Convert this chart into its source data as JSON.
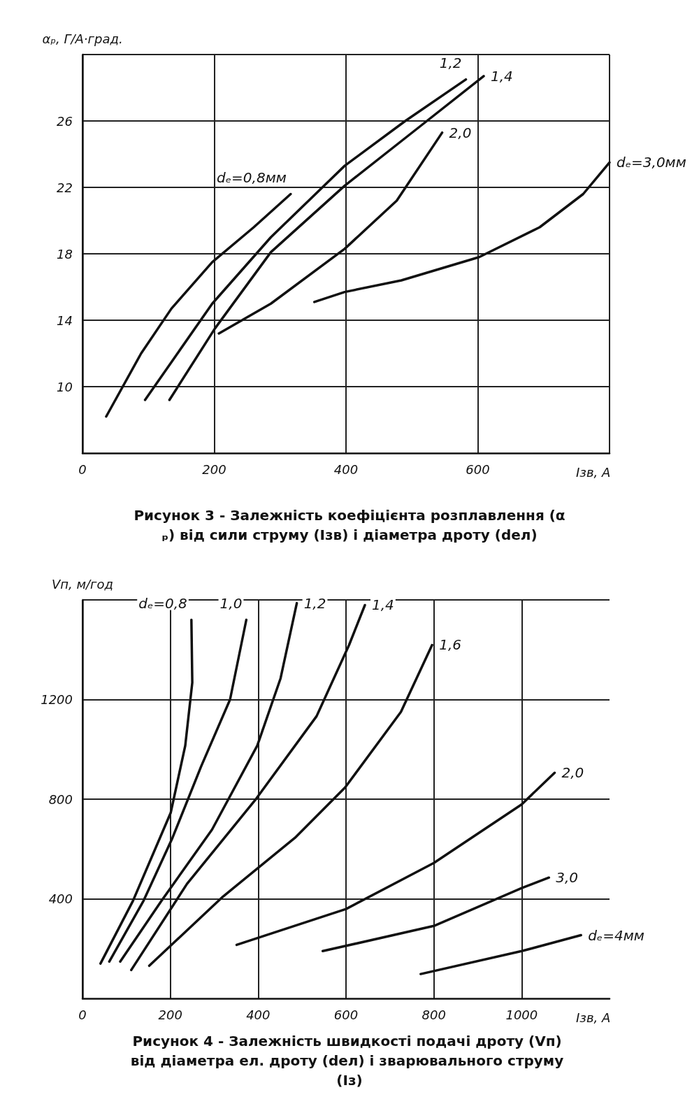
{
  "chart_data": [
    {
      "type": "line",
      "title": "Рисунок 3 - Залежність коефіцієнта розплавлення (αₚ) від сили струму (Iзв) і діаметра дроту (dел)",
      "xlabel": "Iзв, А",
      "ylabel": "αₚ, Г/А·град.",
      "xlim": [
        0,
        800
      ],
      "xticks": [
        0,
        200,
        400,
        600,
        {
          "value": 800,
          "label": null
        }
      ],
      "ylim": [
        6,
        30
      ],
      "yticks": [
        10,
        14,
        18,
        22,
        26,
        {
          "value": 30,
          "label": null
        }
      ],
      "grid": true,
      "series": [
        {
          "name": "dₑ=0,8мм",
          "color": "#111111",
          "x": [
            36,
            89,
            135,
            197,
            260,
            316
          ],
          "values": [
            8.2,
            12.0,
            14.7,
            17.5,
            19.6,
            21.6
          ]
        },
        {
          "name": "1,2",
          "color": "#111111",
          "x": [
            95,
            197,
            286,
            398,
            490,
            582
          ],
          "values": [
            9.2,
            15.0,
            19.0,
            23.3,
            26.0,
            28.5
          ]
        },
        {
          "name": "1,4",
          "color": "#111111",
          "x": [
            132,
            201,
            286,
            398,
            510,
            609
          ],
          "values": [
            9.2,
            13.5,
            18.1,
            22.1,
            25.6,
            28.7
          ]
        },
        {
          "name": "2,0",
          "color": "#111111",
          "x": [
            207,
            286,
            398,
            477,
            546
          ],
          "values": [
            13.2,
            15.0,
            18.3,
            21.2,
            25.3
          ]
        },
        {
          "name": "dₑ=3,0мм",
          "color": "#111111",
          "x": [
            352,
            398,
            484,
            602,
            694,
            760,
            800
          ],
          "values": [
            15.1,
            15.7,
            16.4,
            17.8,
            19.6,
            21.6,
            23.5
          ]
        }
      ]
    },
    {
      "type": "line",
      "title": "Рисунок 4 - Залежність швидкості подачі дроту (Vп) від діаметра ел. дроту (dел) і зварювального струму (Iз)",
      "xlabel": "Iзв, А",
      "ylabel": "Vп, м/год",
      "xlim": [
        0,
        1200
      ],
      "xticks": [
        0,
        200,
        400,
        600,
        800,
        1000
      ],
      "ylim": [
        0,
        1600
      ],
      "yticks": [
        400,
        800,
        1200,
        {
          "value": 1600,
          "label": null
        }
      ],
      "grid": true,
      "series": [
        {
          "name": "dₑ=0,8",
          "color": "#111111",
          "x": [
            41,
            115,
            201,
            234,
            250,
            248
          ],
          "values": [
            140,
            392,
            746,
            1015,
            1268,
            1520
          ]
        },
        {
          "name": "1,0",
          "color": "#111111",
          "x": [
            61,
            139,
            205,
            270,
            336,
            373
          ],
          "values": [
            148,
            392,
            645,
            931,
            1200,
            1520
          ]
        },
        {
          "name": "1,2",
          "color": "#111111",
          "x": [
            86,
            180,
            295,
            398,
            451,
            488
          ],
          "values": [
            148,
            392,
            678,
            1015,
            1285,
            1587
          ]
        },
        {
          "name": "1,4",
          "color": "#111111",
          "x": [
            111,
            238,
            393,
            533,
            607,
            643
          ],
          "values": [
            114,
            460,
            796,
            1133,
            1419,
            1579
          ]
        },
        {
          "name": "1,6",
          "color": "#111111",
          "x": [
            152,
            320,
            484,
            598,
            725,
            796
          ],
          "values": [
            131,
            409,
            645,
            847,
            1150,
            1419
          ]
        },
        {
          "name": "2,0",
          "color": "#111111",
          "x": [
            351,
            600,
            800,
            1000,
            1075
          ],
          "values": [
            215,
            359,
            544,
            779,
            906
          ]
        },
        {
          "name": "3,0",
          "color": "#111111",
          "x": [
            547,
            800,
            1000,
            1062
          ],
          "values": [
            190,
            291,
            443,
            485
          ]
        },
        {
          "name": "dₑ=4мм",
          "color": "#111111",
          "x": [
            770,
            1000,
            1135
          ],
          "values": [
            98,
            190,
            254
          ]
        }
      ]
    }
  ]
}
